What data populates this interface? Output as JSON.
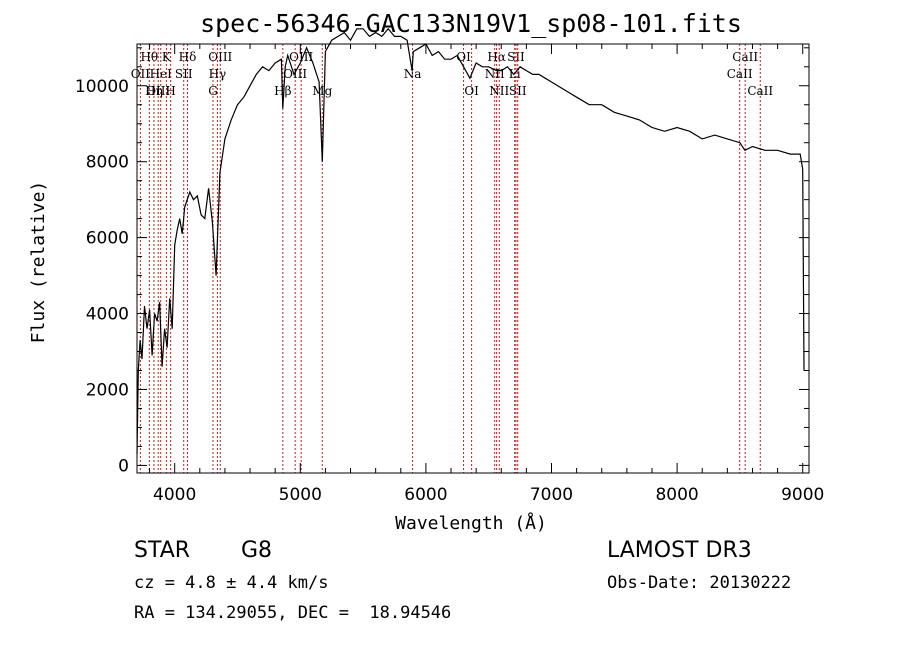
{
  "chart_data": {
    "type": "line",
    "title": "spec-56346-GAC133N19V1_sp08-101.fits",
    "xlabel": "Wavelength (Å)",
    "ylabel": "Flux (relative)",
    "xlim": [
      3700,
      9050
    ],
    "ylim": [
      -200,
      11100
    ],
    "xticks": [
      4000,
      5000,
      6000,
      7000,
      8000,
      9000
    ],
    "yticks": [
      0,
      2000,
      4000,
      6000,
      8000,
      10000
    ],
    "series": [
      {
        "name": "spectrum",
        "x": [
          3700,
          3710,
          3725,
          3740,
          3760,
          3780,
          3800,
          3820,
          3840,
          3860,
          3880,
          3900,
          3920,
          3940,
          3960,
          3980,
          4000,
          4020,
          4040,
          4060,
          4080,
          4100,
          4120,
          4150,
          4180,
          4210,
          4240,
          4270,
          4300,
          4330,
          4360,
          4400,
          4450,
          4500,
          4550,
          4600,
          4650,
          4700,
          4750,
          4800,
          4850,
          4861,
          4880,
          4900,
          4950,
          5000,
          5050,
          5100,
          5150,
          5175,
          5200,
          5250,
          5300,
          5350,
          5400,
          5450,
          5500,
          5550,
          5600,
          5650,
          5700,
          5750,
          5800,
          5850,
          5890,
          5900,
          5950,
          6000,
          6050,
          6100,
          6150,
          6200,
          6250,
          6300,
          6350,
          6400,
          6450,
          6500,
          6563,
          6600,
          6650,
          6700,
          6750,
          6800,
          6850,
          6900,
          6950,
          7000,
          7100,
          7200,
          7300,
          7400,
          7500,
          7600,
          7700,
          7800,
          7900,
          8000,
          8100,
          8200,
          8300,
          8400,
          8500,
          8540,
          8600,
          8700,
          8800,
          8900,
          8980,
          9000,
          9010
        ],
        "y": [
          300,
          2500,
          3300,
          2800,
          4200,
          3600,
          4100,
          2900,
          4000,
          3800,
          4300,
          2600,
          3600,
          3100,
          4400,
          3600,
          5800,
          6200,
          6500,
          6100,
          6800,
          7000,
          7200,
          7000,
          7100,
          6600,
          6500,
          7300,
          6400,
          5000,
          7700,
          8600,
          9100,
          9500,
          9700,
          10000,
          10300,
          10500,
          10400,
          10600,
          10700,
          9400,
          10500,
          10800,
          10300,
          10600,
          11000,
          10600,
          10100,
          8000,
          10900,
          11200,
          11300,
          11400,
          11200,
          11500,
          11500,
          11300,
          11400,
          11300,
          11500,
          11300,
          11300,
          11200,
          10400,
          10900,
          11000,
          11100,
          10800,
          10900,
          10700,
          10700,
          10800,
          10500,
          10200,
          10600,
          10500,
          10500,
          10400,
          10400,
          10500,
          10300,
          10500,
          10400,
          10300,
          10300,
          10200,
          10100,
          9900,
          9700,
          9500,
          9500,
          9300,
          9200,
          9100,
          8900,
          8800,
          8900,
          8800,
          8600,
          8700,
          8600,
          8500,
          8300,
          8400,
          8300,
          8300,
          8200,
          8200,
          7800,
          2500
        ]
      }
    ],
    "lines": [
      {
        "label": "Hθ",
        "wave": 3798,
        "row": 0
      },
      {
        "label": "OII",
        "wave": 3727,
        "row": 1
      },
      {
        "label": "OIII",
        "wave": 3869,
        "row": 2
      },
      {
        "label": "K",
        "wave": 3934,
        "row": 0
      },
      {
        "label": "HeI",
        "wave": 3889,
        "row": 1
      },
      {
        "label": "Hη",
        "wave": 3835,
        "row": 2
      },
      {
        "label": "Hδ",
        "wave": 4102,
        "row": 0
      },
      {
        "label": "SII",
        "wave": 4072,
        "row": 1
      },
      {
        "label": "H",
        "wave": 3968,
        "row": 2
      },
      {
        "label": "OIII",
        "wave": 4363,
        "row": 0
      },
      {
        "label": "Hγ",
        "wave": 4340,
        "row": 1
      },
      {
        "label": "G",
        "wave": 4305,
        "row": 2
      },
      {
        "label": "OIII",
        "wave": 5007,
        "row": 0
      },
      {
        "label": "OIII",
        "wave": 4959,
        "row": 1
      },
      {
        "label": "Hβ",
        "wave": 4861,
        "row": 2
      },
      {
        "label": "Mg",
        "wave": 5175,
        "row": 2
      },
      {
        "label": "Na",
        "wave": 5894,
        "row": 1
      },
      {
        "label": "OI",
        "wave": 6300,
        "row": 0
      },
      {
        "label": "OI",
        "wave": 6364,
        "row": 2
      },
      {
        "label": "Hα",
        "wave": 6563,
        "row": 0
      },
      {
        "label": "NII",
        "wave": 6548,
        "row": 1
      },
      {
        "label": "NII",
        "wave": 6584,
        "row": 2
      },
      {
        "label": "SII",
        "wave": 6717,
        "row": 0
      },
      {
        "label": "Li",
        "wave": 6707,
        "row": 1
      },
      {
        "label": "SII",
        "wave": 6731,
        "row": 2
      },
      {
        "label": "CaII",
        "wave": 8542,
        "row": 0
      },
      {
        "label": "CaII",
        "wave": 8498,
        "row": 1
      },
      {
        "label": "CaII",
        "wave": 8662,
        "row": 2
      }
    ],
    "colors": {
      "spectrum": "#000000",
      "lines": "#b22222",
      "axes": "#000000"
    }
  },
  "info": {
    "class": "STAR",
    "subclass": "G8",
    "survey": "LAMOST DR3",
    "cz": "cz = 4.8 ± 4.4 km/s",
    "obsdate": "Obs-Date: 20130222",
    "coords": "RA = 134.29055, DEC =  18.94546"
  }
}
